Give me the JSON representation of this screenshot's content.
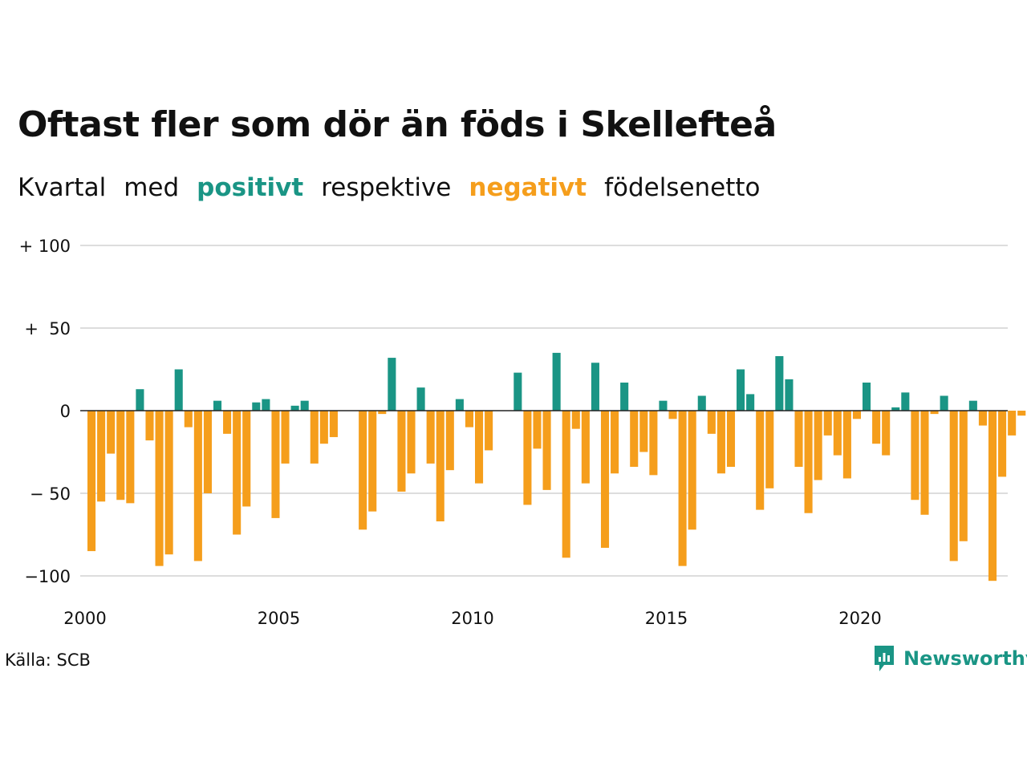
{
  "title": "Oftast fler som dör än föds i Skellefteå",
  "subtitle": {
    "part1": "Kvartal",
    "part2": "med",
    "positive_word": "positivt",
    "part3": "respektive",
    "negative_word": "negativt",
    "part4": "födelsenetto"
  },
  "colors": {
    "positive": "#1a9585",
    "negative": "#f59e1c",
    "gridline": "#dddddd",
    "zero_line": "#222222"
  },
  "source": "Källa: SCB",
  "brand": {
    "name": "Newsworthy",
    "icon": "newsworthy-logo-icon"
  },
  "chart_data": {
    "type": "bar",
    "title": "Oftast fler som dör än föds i Skellefteå",
    "xlabel": "",
    "ylabel": "",
    "ylim": [
      -100,
      100
    ],
    "y_ticks": [
      {
        "value": 100,
        "label": "+ 100"
      },
      {
        "value": 50,
        "label": "+  50"
      },
      {
        "value": 0,
        "label": "0"
      },
      {
        "value": -50,
        "label": "− 50"
      },
      {
        "value": -100,
        "label": "−100"
      }
    ],
    "x_ticks": [
      "2000",
      "2005",
      "2010",
      "2015",
      "2020"
    ],
    "grid": true,
    "categories": [
      "2000 K1",
      "2000 K2",
      "2000 K3",
      "2000 K4",
      "2001 K1",
      "2001 K2",
      "2001 K3",
      "2001 K4",
      "2002 K1",
      "2002 K2",
      "2002 K3",
      "2002 K4",
      "2003 K1",
      "2003 K2",
      "2003 K3",
      "2003 K4",
      "2004 K1",
      "2004 K2",
      "2004 K3",
      "2004 K4",
      "2005 K1",
      "2005 K2",
      "2005 K3",
      "2005 K4",
      "2006 K1",
      "2006 K2",
      "2006 K3",
      "2006 K4",
      "2007 K1",
      "2007 K2",
      "2007 K3",
      "2007 K4",
      "2008 K1",
      "2008 K2",
      "2008 K3",
      "2008 K4",
      "2009 K1",
      "2009 K2",
      "2009 K3",
      "2009 K4",
      "2010 K1",
      "2010 K2",
      "2010 K3",
      "2010 K4",
      "2011 K1",
      "2011 K2",
      "2011 K3",
      "2011 K4",
      "2012 K1",
      "2012 K2",
      "2012 K3",
      "2012 K4",
      "2013 K1",
      "2013 K2",
      "2013 K3",
      "2013 K4",
      "2014 K1",
      "2014 K2",
      "2014 K3",
      "2014 K4",
      "2015 K1",
      "2015 K2",
      "2015 K3",
      "2015 K4",
      "2016 K1",
      "2016 K2",
      "2016 K3",
      "2016 K4",
      "2017 K1",
      "2017 K2",
      "2017 K3",
      "2017 K4",
      "2018 K1",
      "2018 K2",
      "2018 K3",
      "2018 K4",
      "2019 K1",
      "2019 K2",
      "2019 K3",
      "2019 K4",
      "2020 K1",
      "2020 K2",
      "2020 K3",
      "2020 K4",
      "2021 K1",
      "2021 K2",
      "2021 K3",
      "2021 K4",
      "2022 K1",
      "2022 K2",
      "2022 K3",
      "2022 K4",
      "2023 K1",
      "2023 K2",
      "2023 K3",
      "2023 K4"
    ],
    "values": [
      -85,
      -55,
      -26,
      -54,
      -56,
      13,
      -18,
      -94,
      -87,
      25,
      -10,
      -91,
      -50,
      6,
      -14,
      -75,
      -58,
      5,
      7,
      -65,
      -32,
      3,
      6,
      -32,
      -20,
      -16,
      0,
      0,
      -72,
      -61,
      -2,
      32,
      -49,
      -38,
      14,
      -32,
      -67,
      -36,
      7,
      -10,
      -44,
      -24,
      0,
      0,
      23,
      -57,
      -23,
      -48,
      35,
      -89,
      -11,
      -44,
      29,
      -83,
      -38,
      17,
      -34,
      -25,
      -39,
      6,
      -5,
      -94,
      -72,
      9,
      -14,
      -38,
      -34,
      25,
      10,
      -60,
      -47,
      33,
      19,
      -34,
      -62,
      -42,
      -15,
      -27,
      -41,
      -5,
      17,
      -20,
      -27,
      2,
      11,
      -54,
      -63,
      -2,
      9,
      -91,
      -79,
      6,
      -9,
      -103,
      -40,
      -15
    ],
    "extra_values_after_2023": [
      -3
    ]
  }
}
